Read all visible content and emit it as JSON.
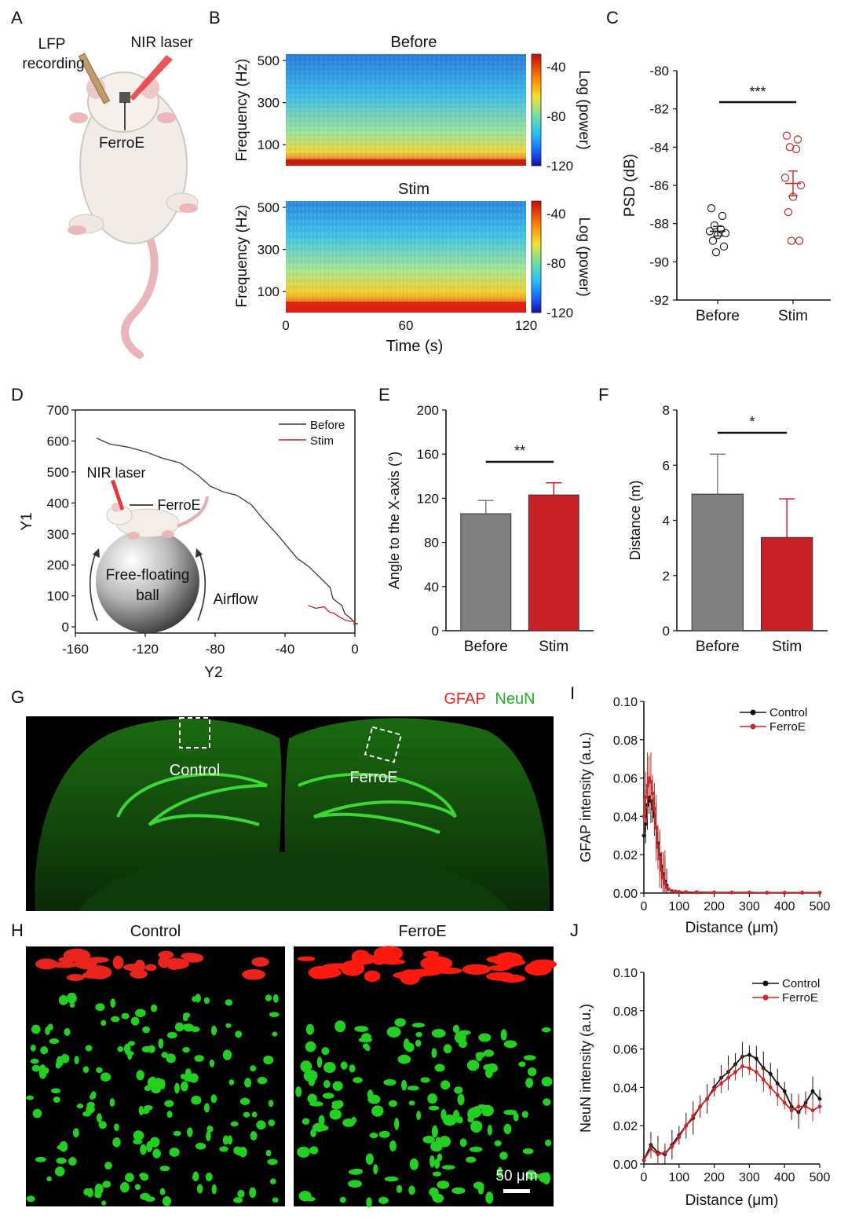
{
  "panels": {
    "a": "A",
    "b": "B",
    "c": "C",
    "d": "D",
    "e": "E",
    "f": "F",
    "g": "G",
    "h": "H",
    "i": "I",
    "j": "J"
  },
  "panel_a": {
    "lfp_line1": "LFP",
    "lfp_line2": "recording",
    "nir": "NIR laser",
    "ferroe": "FerroE"
  },
  "panel_b": {
    "title_top": "Before",
    "title_bottom": "Stim",
    "ylabel": "Frequency (Hz)",
    "xlabel": "Time (s)",
    "cbar_label": "Log (power)",
    "colors": {
      "low": "#1a1aff",
      "mid": "#3cc8e0",
      "high": "#e11a0c"
    }
  },
  "panel_d": {
    "nir": "NIR laser",
    "ferroe": "FerroE",
    "ball_line1": "Free-floating",
    "ball_line2": "ball",
    "airflow": "Airflow"
  },
  "panel_g": {
    "stain1": "GFAP",
    "stain2": "NeuN",
    "control": "Control",
    "ferroe": "FerroE",
    "colors": {
      "gfap": "#e8241c",
      "neun": "#22b022"
    }
  },
  "panel_h": {
    "control": "Control",
    "ferroe": "FerroE",
    "scalebar": "50 μm"
  },
  "chart_data": [
    {
      "id": "B",
      "type": "heatmap",
      "title": "Before / Stim",
      "xlabel": "Time (s)",
      "ylabel": "Frequency (Hz)",
      "xticks": [
        0,
        60,
        120
      ],
      "yticks": [
        100,
        300,
        500
      ],
      "xlim": [
        0,
        120
      ],
      "ylim": [
        0,
        530
      ],
      "colorbar": {
        "label": "Log (power)",
        "ticks": [
          -40,
          -80,
          -120
        ],
        "range": [
          -120,
          -30
        ]
      }
    },
    {
      "id": "C",
      "type": "scatter",
      "ylabel": "PSD (dB)",
      "categories": [
        "Before",
        "Stim"
      ],
      "ylim": [
        -92,
        -80
      ],
      "yticks": [
        -92,
        -90,
        -88,
        -86,
        -84,
        -82,
        -80
      ],
      "significance": "***",
      "series": [
        {
          "name": "Before",
          "color": "#222222",
          "points": [
            -87.2,
            -87.6,
            -88.1,
            -88.3,
            -88.4,
            -88.5,
            -88.6,
            -88.9,
            -89.2,
            -89.5
          ],
          "mean": -88.4,
          "sem": 0.25
        },
        {
          "name": "Stim",
          "color": "#c8282a",
          "points": [
            -83.4,
            -83.6,
            -84.0,
            -84.1,
            -85.6,
            -86.0,
            -86.6,
            -87.4,
            -88.9,
            -88.9
          ],
          "mean": -85.9,
          "sem": 0.65
        }
      ]
    },
    {
      "id": "D",
      "type": "line",
      "xlabel": "Y2",
      "ylabel": "Y1",
      "xlim": [
        -160,
        0
      ],
      "ylim": [
        0,
        700
      ],
      "xticks": [
        -160,
        -120,
        -80,
        -40,
        0
      ],
      "yticks": [
        0,
        100,
        200,
        300,
        400,
        500,
        600,
        700
      ],
      "legend": "top-right",
      "series": [
        {
          "name": "Before",
          "color": "#3a3a3a",
          "x": [
            -147,
            -140,
            -130,
            -120,
            -110,
            -100,
            -90,
            -82,
            -75,
            -68,
            -60,
            -52,
            -45,
            -38,
            -32,
            -26,
            -20,
            -15,
            -12,
            -10,
            -8,
            -5,
            -2,
            0,
            1
          ],
          "y": [
            605,
            592,
            578,
            568,
            545,
            525,
            490,
            452,
            440,
            425,
            390,
            350,
            300,
            255,
            220,
            190,
            160,
            125,
            95,
            80,
            65,
            45,
            25,
            15,
            10
          ]
        },
        {
          "name": "Stim",
          "color": "#cc2222",
          "x": [
            -26,
            -22,
            -18,
            -16,
            -14,
            -12,
            -10,
            -8,
            -5,
            -3,
            -1,
            0,
            1
          ],
          "y": [
            65,
            62,
            63,
            55,
            48,
            40,
            36,
            30,
            25,
            18,
            14,
            10,
            8
          ]
        }
      ]
    },
    {
      "id": "E",
      "type": "bar",
      "ylabel": "Angle to the X-axis (°)",
      "categories": [
        "Before",
        "Stim"
      ],
      "values": [
        106,
        123
      ],
      "errors": [
        12,
        11
      ],
      "colors": [
        "#808080",
        "#c82026"
      ],
      "ylim": [
        0,
        200
      ],
      "yticks": [
        0,
        40,
        80,
        120,
        160,
        200
      ],
      "significance": "**"
    },
    {
      "id": "F",
      "type": "bar",
      "ylabel": "Distance (m)",
      "categories": [
        "Before",
        "Stim"
      ],
      "values": [
        4.95,
        3.38
      ],
      "errors": [
        1.45,
        1.4
      ],
      "colors": [
        "#808080",
        "#c82026"
      ],
      "ylim": [
        0,
        8
      ],
      "yticks": [
        0,
        2,
        4,
        6,
        8
      ],
      "significance": "*"
    },
    {
      "id": "I",
      "type": "line",
      "xlabel": "Distance (μm)",
      "ylabel": "GFAP intensity (a.u.)",
      "xlim": [
        0,
        500
      ],
      "ylim": [
        0,
        0.1
      ],
      "xticks": [
        0,
        100,
        200,
        300,
        400,
        500
      ],
      "yticks": [
        0.0,
        0.02,
        0.04,
        0.06,
        0.08,
        0.1
      ],
      "legend": "top-right",
      "series": [
        {
          "name": "Control",
          "color": "#111111",
          "x": [
            0,
            5,
            10,
            15,
            20,
            25,
            30,
            35,
            40,
            45,
            50,
            55,
            60,
            65,
            70,
            80,
            90,
            100,
            120,
            150,
            200,
            250,
            300,
            350,
            400,
            450,
            500
          ],
          "y": [
            0.03,
            0.036,
            0.046,
            0.05,
            0.048,
            0.044,
            0.04,
            0.034,
            0.026,
            0.02,
            0.014,
            0.01,
            0.006,
            0.004,
            0.002,
            0.001,
            0.0008,
            0.0006,
            0.0005,
            0.0004,
            0.0003,
            0.0003,
            0.0003,
            0.0002,
            0.0002,
            0.0002,
            0.0002
          ],
          "error": 0.012
        },
        {
          "name": "FerroE",
          "color": "#c8282a",
          "x": [
            0,
            5,
            10,
            15,
            20,
            25,
            30,
            35,
            40,
            45,
            50,
            55,
            60,
            65,
            70,
            80,
            90,
            100,
            120,
            150,
            200,
            250,
            300,
            350,
            400,
            450,
            500
          ],
          "y": [
            0.04,
            0.05,
            0.056,
            0.06,
            0.058,
            0.052,
            0.044,
            0.034,
            0.024,
            0.018,
            0.012,
            0.008,
            0.005,
            0.003,
            0.002,
            0.001,
            0.0008,
            0.0006,
            0.0005,
            0.0004,
            0.0003,
            0.0003,
            0.0003,
            0.0002,
            0.0002,
            0.0002,
            0.0002
          ],
          "error": 0.016
        }
      ]
    },
    {
      "id": "J",
      "type": "line",
      "xlabel": "Distance (μm)",
      "ylabel": "NeuN intensity (a.u.)",
      "xlim": [
        0,
        500
      ],
      "ylim": [
        0,
        0.1
      ],
      "xticks": [
        0,
        100,
        200,
        300,
        400,
        500
      ],
      "yticks": [
        0.0,
        0.02,
        0.04,
        0.06,
        0.08,
        0.1
      ],
      "legend": "top-right",
      "series": [
        {
          "name": "Control",
          "color": "#111111",
          "x": [
            0,
            20,
            40,
            60,
            80,
            100,
            120,
            140,
            160,
            180,
            200,
            220,
            240,
            260,
            280,
            300,
            320,
            340,
            360,
            380,
            400,
            420,
            440,
            460,
            480,
            500
          ],
          "y": [
            0.002,
            0.01,
            0.006,
            0.005,
            0.01,
            0.015,
            0.02,
            0.024,
            0.03,
            0.034,
            0.04,
            0.045,
            0.048,
            0.052,
            0.056,
            0.057,
            0.055,
            0.05,
            0.047,
            0.042,
            0.038,
            0.03,
            0.027,
            0.032,
            0.038,
            0.034
          ],
          "error": 0.008
        },
        {
          "name": "FerroE",
          "color": "#c8282a",
          "x": [
            0,
            20,
            40,
            60,
            80,
            100,
            120,
            140,
            160,
            180,
            200,
            220,
            240,
            260,
            280,
            300,
            320,
            340,
            360,
            380,
            400,
            420,
            440,
            460,
            480,
            500
          ],
          "y": [
            0.002,
            0.008,
            0.005,
            0.006,
            0.009,
            0.014,
            0.02,
            0.025,
            0.03,
            0.034,
            0.039,
            0.042,
            0.045,
            0.048,
            0.051,
            0.05,
            0.048,
            0.044,
            0.04,
            0.036,
            0.032,
            0.028,
            0.03,
            0.03,
            0.028,
            0.03
          ],
          "error": 0.006
        }
      ]
    }
  ]
}
